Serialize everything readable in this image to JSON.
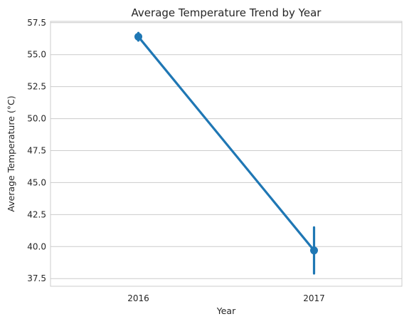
{
  "chart_data": {
    "type": "line",
    "title": "Average Temperature Trend by Year",
    "xlabel": "Year",
    "ylabel": "Average Temperature (°C)",
    "categories": [
      "2016",
      "2017"
    ],
    "series": [
      {
        "values": [
          56.4,
          39.7
        ],
        "ci_low": [
          56.1,
          37.9
        ],
        "ci_high": [
          56.7,
          41.5
        ]
      }
    ],
    "ylim": [
      36.9,
      57.6
    ],
    "yticks": [
      "37.5",
      "40.0",
      "42.5",
      "45.0",
      "47.5",
      "50.0",
      "52.5",
      "55.0",
      "57.5"
    ],
    "grid": "y",
    "legend": "none",
    "colors": {
      "line": "#1f77b4",
      "grid": "#cccccc",
      "frame": "#cccccc",
      "text": "#262626"
    }
  }
}
